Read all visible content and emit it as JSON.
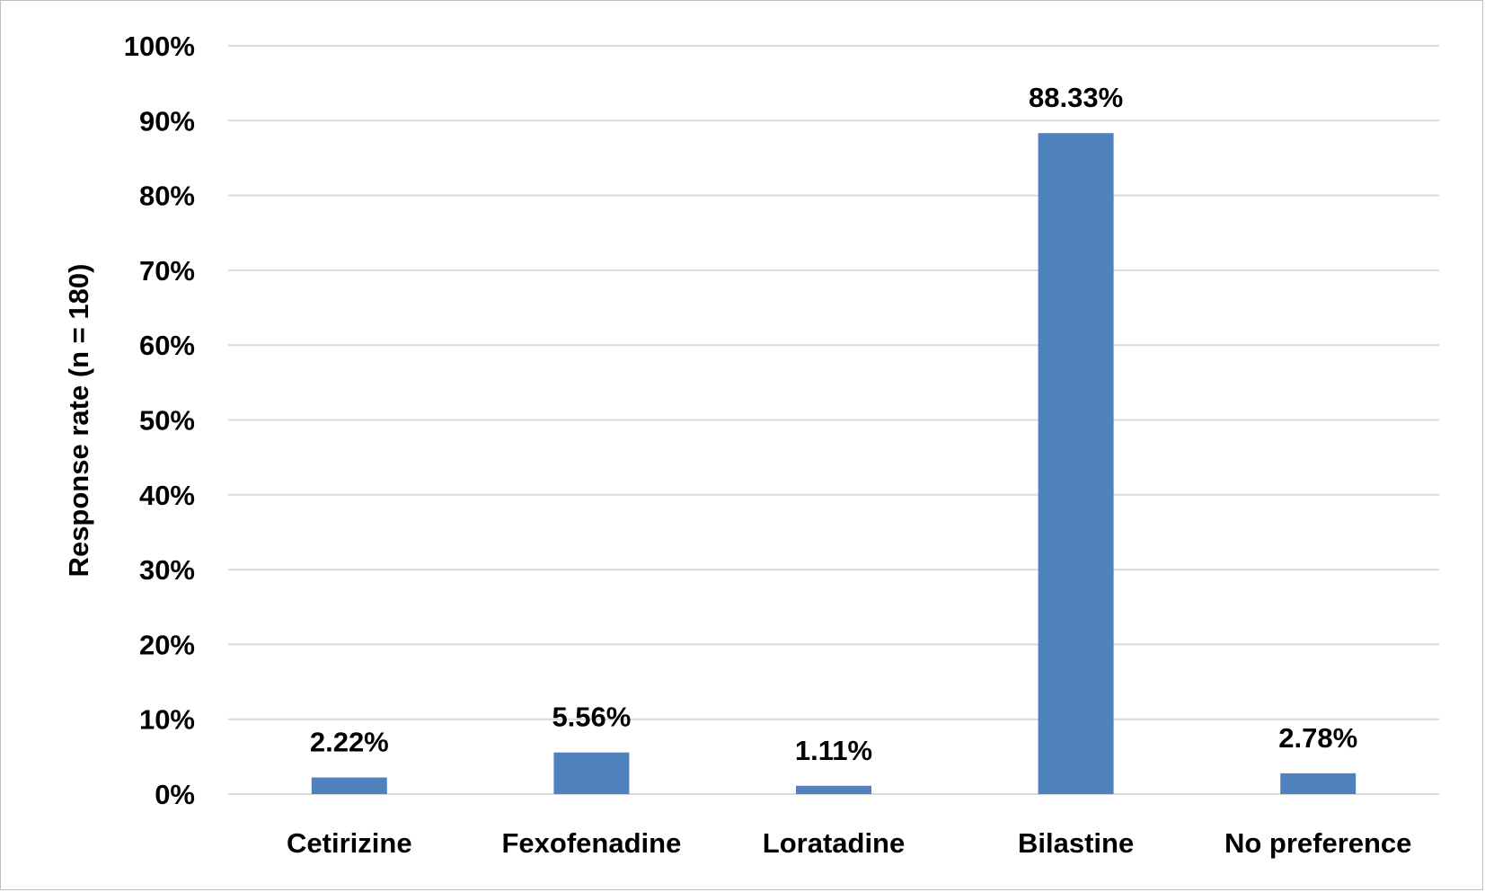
{
  "chart_data": {
    "type": "bar",
    "title": "",
    "xlabel": "",
    "ylabel": "Response rate (n = 180)",
    "categories": [
      "Cetirizine",
      "Fexofenadine",
      "Loratadine",
      "Bilastine",
      "No preference"
    ],
    "values": [
      2.22,
      5.56,
      1.11,
      88.33,
      2.78
    ],
    "data_labels": [
      "2.22%",
      "5.56%",
      "1.11%",
      "88.33%",
      "2.78%"
    ],
    "ylim": [
      0,
      100
    ],
    "yticks": [
      0,
      10,
      20,
      30,
      40,
      50,
      60,
      70,
      80,
      90,
      100
    ],
    "ytick_labels": [
      "0%",
      "10%",
      "20%",
      "30%",
      "40%",
      "50%",
      "60%",
      "70%",
      "80%",
      "90%",
      "100%"
    ],
    "grid": true,
    "legend": "none",
    "bar_color": "#4f81bd"
  }
}
